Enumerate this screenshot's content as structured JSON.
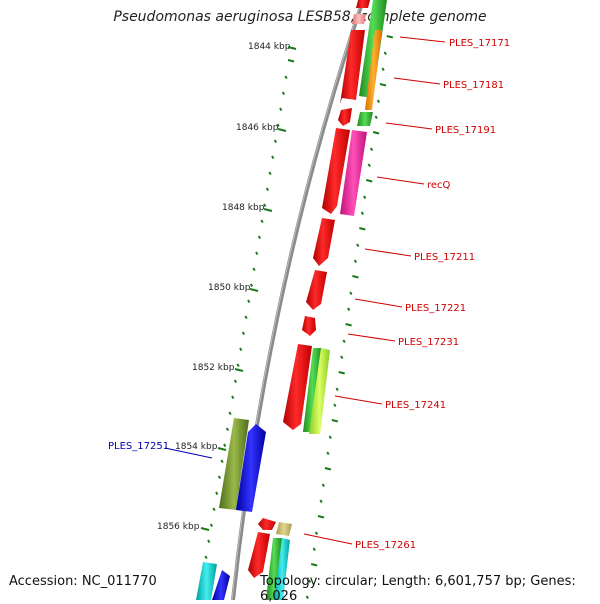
{
  "title": "Pseudomonas aeruginosa LESB58, complete genome",
  "footer": {
    "accession": "Accession: NC_011770",
    "topology": "Topology: circular; Length: 6,601,757 bp; Genes: 6,026"
  },
  "colors": {
    "backbone": "#8a8a8a",
    "tick": "#1a7a1a",
    "forward_label": "#d00000",
    "reverse_label": "#0000b0"
  },
  "scale_labels": [
    "1844 kbp",
    "1846 kbp",
    "1848 kbp",
    "1850 kbp",
    "1852 kbp",
    "1854 kbp",
    "1856 kbp"
  ],
  "gene_labels": [
    {
      "text": "PLES_17171",
      "strand": "forward"
    },
    {
      "text": "PLES_17181",
      "strand": "forward"
    },
    {
      "text": "PLES_17191",
      "strand": "forward"
    },
    {
      "text": "recQ",
      "strand": "forward"
    },
    {
      "text": "PLES_17211",
      "strand": "forward"
    },
    {
      "text": "PLES_17221",
      "strand": "forward"
    },
    {
      "text": "PLES_17231",
      "strand": "forward"
    },
    {
      "text": "PLES_17241",
      "strand": "forward"
    },
    {
      "text": "PLES_17251",
      "strand": "reverse"
    },
    {
      "text": "PLES_17261",
      "strand": "forward"
    }
  ]
}
